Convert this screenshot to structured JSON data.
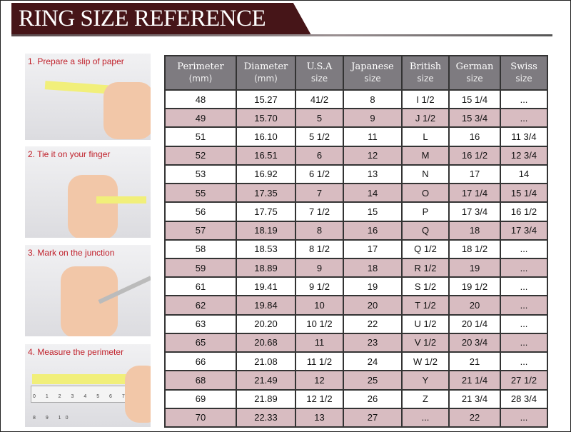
{
  "title": "RING SIZE REFERENCE",
  "steps": [
    "1. Prepare a slip of paper",
    "2. Tie it on your finger",
    "3. Mark on the junction",
    "4. Measure the perimeter"
  ],
  "ruler_numbers": "0 1 2 3 4 5 6 7 8 9 10",
  "colors": {
    "banner": "#461518",
    "header": "#7e7b80",
    "alt_row": "#d8bcc1",
    "step_text": "#c0202a"
  },
  "headers": [
    {
      "name": "Perimeter",
      "sub": "(mm)"
    },
    {
      "name": "Diameter",
      "sub": "(mm)"
    },
    {
      "name": "U.S.A",
      "sub": "size"
    },
    {
      "name": "Japanese",
      "sub": "size"
    },
    {
      "name": "British",
      "sub": "size"
    },
    {
      "name": "German",
      "sub": "size"
    },
    {
      "name": "Swiss",
      "sub": "size"
    }
  ],
  "rows": [
    [
      "48",
      "15.27",
      "41/2",
      "8",
      "I 1/2",
      "15 1/4",
      "..."
    ],
    [
      "49",
      "15.70",
      "5",
      "9",
      "J 1/2",
      "15 3/4",
      "..."
    ],
    [
      "51",
      "16.10",
      "5 1/2",
      "11",
      "L",
      "16",
      "11 3/4"
    ],
    [
      "52",
      "16.51",
      "6",
      "12",
      "M",
      "16 1/2",
      "12 3/4"
    ],
    [
      "53",
      "16.92",
      "6 1/2",
      "13",
      "N",
      "17",
      "14"
    ],
    [
      "55",
      "17.35",
      "7",
      "14",
      "O",
      "17 1/4",
      "15 1/4"
    ],
    [
      "56",
      "17.75",
      "7 1/2",
      "15",
      "P",
      "17 3/4",
      "16 1/2"
    ],
    [
      "57",
      "18.19",
      "8",
      "16",
      "Q",
      "18",
      "17 3/4"
    ],
    [
      "58",
      "18.53",
      "8 1/2",
      "17",
      "Q  1/2",
      "18 1/2",
      "..."
    ],
    [
      "59",
      "18.89",
      "9",
      "18",
      "R 1/2",
      "19",
      "..."
    ],
    [
      "61",
      "19.41",
      "9 1/2",
      "19",
      "S 1/2",
      "19 1/2",
      "..."
    ],
    [
      "62",
      "19.84",
      "10",
      "20",
      "T 1/2",
      "20",
      "..."
    ],
    [
      "63",
      "20.20",
      "10 1/2",
      "22",
      "U 1/2",
      "20 1/4",
      "..."
    ],
    [
      "65",
      "20.68",
      "11",
      "23",
      "V 1/2",
      "20 3/4",
      "..."
    ],
    [
      "66",
      "21.08",
      "11 1/2",
      "24",
      "W 1/2",
      "21",
      "..."
    ],
    [
      "68",
      "21.49",
      "12",
      "25",
      "Y",
      "21 1/4",
      "27 1/2"
    ],
    [
      "69",
      "21.89",
      "12 1/2",
      "26",
      "Z",
      "21 3/4",
      "28 3/4"
    ],
    [
      "70",
      "22.33",
      "13",
      "27",
      "...",
      "22",
      "..."
    ]
  ]
}
